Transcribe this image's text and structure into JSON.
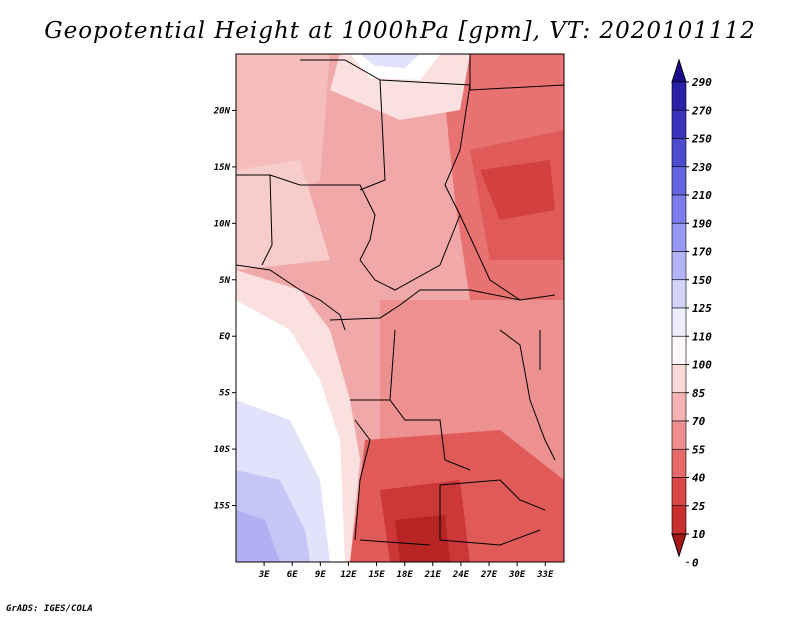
{
  "title": "Geopotential Height at 1000hPa [gpm], VT: 2020101112",
  "credit": "GrADS: IGES/COLA",
  "map": {
    "lon_range": [
      0,
      35
    ],
    "lat_range": [
      -20,
      25
    ],
    "lon_ticks": [
      "3E",
      "6E",
      "9E",
      "12E",
      "15E",
      "18E",
      "21E",
      "24E",
      "27E",
      "30E",
      "33E"
    ],
    "lon_values": [
      3,
      6,
      9,
      12,
      15,
      18,
      21,
      24,
      27,
      30,
      33
    ],
    "lat_ticks": [
      "20N",
      "15N",
      "10N",
      "5N",
      "EQ",
      "5S",
      "10S",
      "15S"
    ],
    "lat_values": [
      20,
      15,
      10,
      5,
      0,
      -5,
      -10,
      -15
    ]
  },
  "colorbar": {
    "labels": [
      "290",
      "270",
      "250",
      "230",
      "210",
      "190",
      "170",
      "150",
      "125",
      "110",
      "100",
      "85",
      "70",
      "55",
      "40",
      "25",
      "10",
      "0"
    ],
    "colors": [
      "#1a0a8c",
      "#2a20a8",
      "#3a34bc",
      "#4c4cd0",
      "#6464e0",
      "#7c7cec",
      "#9898f4",
      "#b4b4f8",
      "#d2d2fa",
      "#eeeeff",
      "#fff8f8",
      "#fbd8d8",
      "#f5b3b3",
      "#ee8e8e",
      "#e66a6a",
      "#dc4646",
      "#c82e2e",
      "#a61818"
    ]
  }
}
